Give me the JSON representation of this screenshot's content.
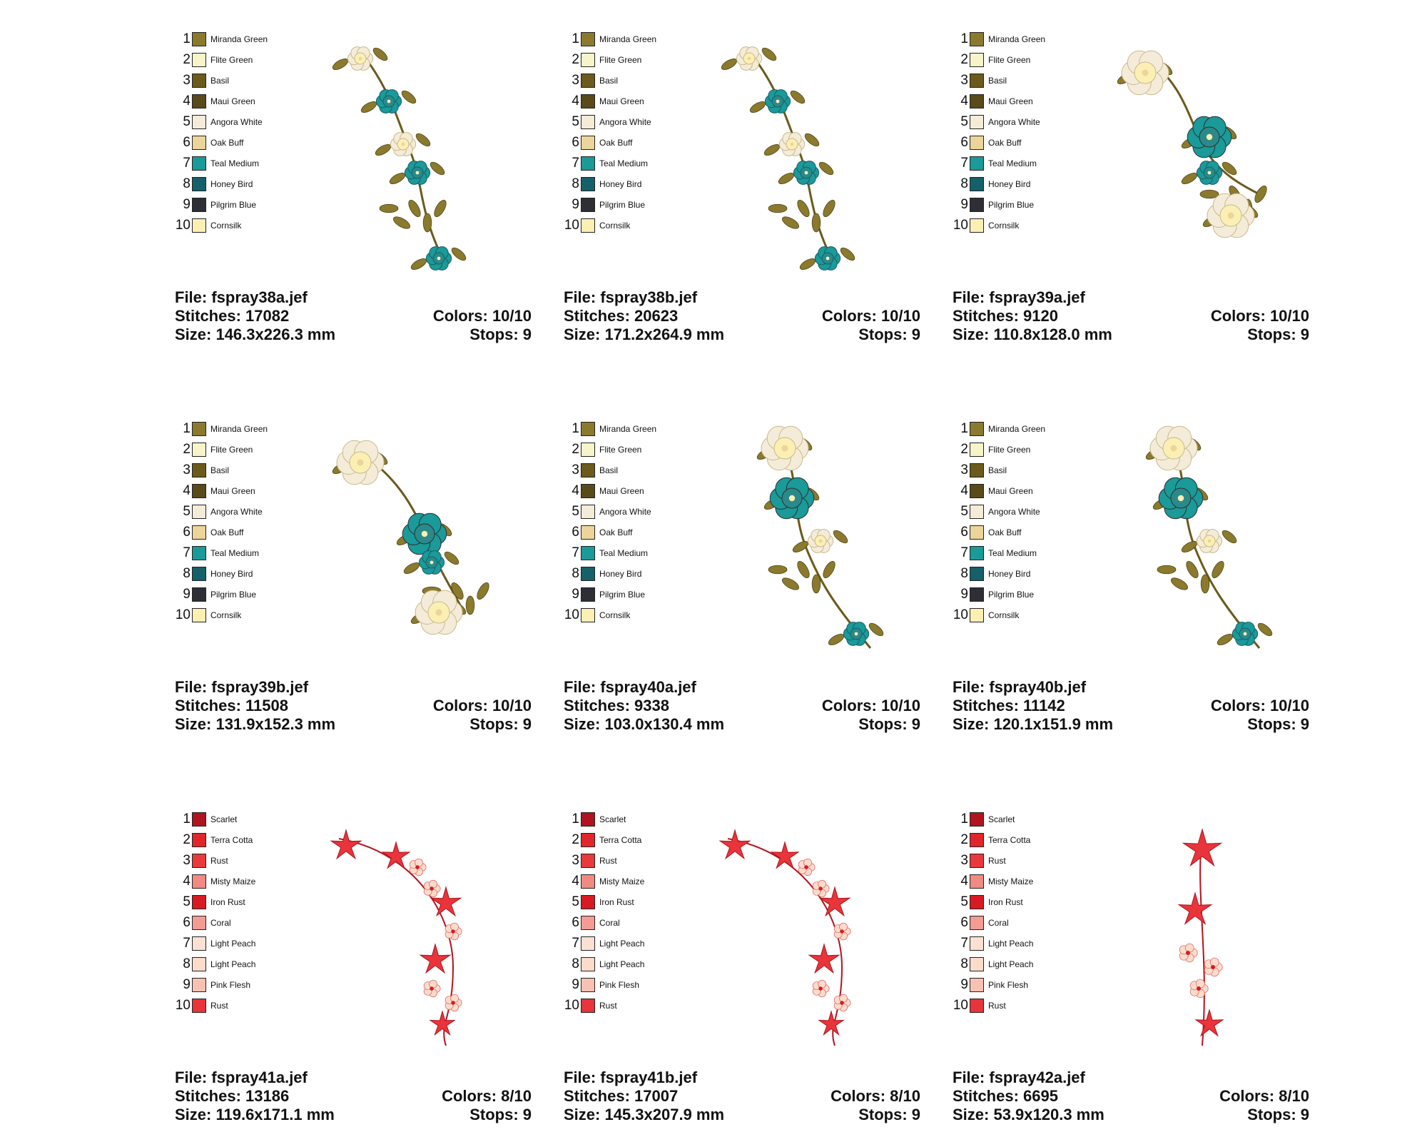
{
  "palettes": {
    "floral": [
      {
        "n": "1",
        "name": "Miranda Green",
        "color": "#8b7a2e"
      },
      {
        "n": "2",
        "name": "Flite Green",
        "color": "#f6f4c8"
      },
      {
        "n": "3",
        "name": "Basil",
        "color": "#6b5a1c"
      },
      {
        "n": "4",
        "name": "Maui Green",
        "color": "#594a1a"
      },
      {
        "n": "5",
        "name": "Angora White",
        "color": "#f4ecd9"
      },
      {
        "n": "6",
        "name": "Oak Buff",
        "color": "#ecd49a"
      },
      {
        "n": "7",
        "name": "Teal Medium",
        "color": "#1a9a98"
      },
      {
        "n": "8",
        "name": "Honey Bird",
        "color": "#16606b"
      },
      {
        "n": "9",
        "name": "Pilgrim Blue",
        "color": "#2e2f36"
      },
      {
        "n": "10",
        "name": "Cornsilk",
        "color": "#fcefb4"
      }
    ],
    "red": [
      {
        "n": "1",
        "name": "Scarlet",
        "color": "#b0141e"
      },
      {
        "n": "2",
        "name": "Terra Cotta",
        "color": "#e0252b"
      },
      {
        "n": "3",
        "name": "Rust",
        "color": "#e83a3a"
      },
      {
        "n": "4",
        "name": "Misty Maize",
        "color": "#f08a82"
      },
      {
        "n": "5",
        "name": "Iron Rust",
        "color": "#d81a22"
      },
      {
        "n": "6",
        "name": "Coral",
        "color": "#f39c94"
      },
      {
        "n": "7",
        "name": "Light Peach",
        "color": "#fbe1d3"
      },
      {
        "n": "8",
        "name": "Light Peach",
        "color": "#fbdccb"
      },
      {
        "n": "9",
        "name": "Pink Flesh",
        "color": "#f7c2b4"
      },
      {
        "n": "10",
        "name": "Rust",
        "color": "#e8343a"
      }
    ]
  },
  "cards": [
    {
      "file": "File: fspray38a.jef",
      "stitches": "Stitches: 17082",
      "size": "Size: 146.3x226.3 mm",
      "colors": "Colors: 10/10",
      "stops": "Stops: 9"
    },
    {
      "file": "File: fspray38b.jef",
      "stitches": "Stitches: 20623",
      "size": "Size: 171.2x264.9 mm",
      "colors": "Colors: 10/10",
      "stops": "Stops: 9"
    },
    {
      "file": "File: fspray39a.jef",
      "stitches": "Stitches: 9120",
      "size": "Size: 110.8x128.0 mm",
      "colors": "Colors: 10/10",
      "stops": "Stops: 9"
    },
    {
      "file": "File: fspray39b.jef",
      "stitches": "Stitches: 11508",
      "size": "Size: 131.9x152.3 mm",
      "colors": "Colors: 10/10",
      "stops": "Stops: 9"
    },
    {
      "file": "File: fspray40a.jef",
      "stitches": "Stitches: 9338",
      "size": "Size: 103.0x130.4 mm",
      "colors": "Colors: 10/10",
      "stops": "Stops: 9"
    },
    {
      "file": "File: fspray40b.jef",
      "stitches": "Stitches: 11142",
      "size": "Size: 120.1x151.9 mm",
      "colors": "Colors: 10/10",
      "stops": "Stops: 9"
    },
    {
      "file": "File: fspray41a.jef",
      "stitches": "Stitches: 13186",
      "size": "Size: 119.6x171.1 mm",
      "colors": "Colors: 8/10",
      "stops": "Stops: 9"
    },
    {
      "file": "File: fspray41b.jef",
      "stitches": "Stitches: 17007",
      "size": "Size: 145.3x207.9 mm",
      "colors": "Colors: 8/10",
      "stops": "Stops: 9"
    },
    {
      "file": "File: fspray42a.jef",
      "stitches": "Stitches: 6695",
      "size": "Size: 53.9x120.3 mm",
      "colors": "Colors: 8/10",
      "stops": "Stops: 9"
    }
  ]
}
